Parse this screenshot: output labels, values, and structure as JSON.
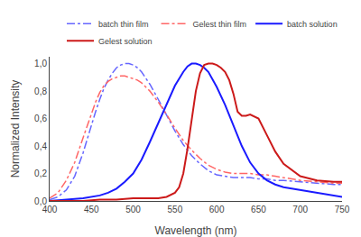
{
  "chart_data": {
    "type": "line",
    "xlabel": "Wavelength (nm)",
    "ylabel": "Normalized Intensity",
    "xlim": [
      400,
      750
    ],
    "ylim": [
      0.0,
      1.05
    ],
    "xticks": [
      400,
      450,
      500,
      550,
      600,
      650,
      700,
      750
    ],
    "yticks": [
      {
        "value": 0.0,
        "label": "0,0"
      },
      {
        "value": 0.2,
        "label": "0,2"
      },
      {
        "value": 0.4,
        "label": "0,4"
      },
      {
        "value": 0.6,
        "label": "0,6"
      },
      {
        "value": 0.8,
        "label": "0,8"
      },
      {
        "value": 1.0,
        "label": "1,0"
      }
    ],
    "grid": false,
    "legend": "upper right",
    "series": [
      {
        "name": "batch thin film",
        "color": "#6666ff",
        "line_style": "dashdot",
        "x": [
          400,
          410,
          420,
          430,
          440,
          450,
          455,
          460,
          465,
          470,
          475,
          480,
          485,
          490,
          495,
          500,
          505,
          510,
          520,
          530,
          540,
          550,
          560,
          570,
          580,
          590,
          600,
          610,
          620,
          630,
          640,
          650,
          660,
          670,
          680,
          700,
          720,
          740,
          750
        ],
        "values": [
          0.01,
          0.03,
          0.08,
          0.18,
          0.35,
          0.56,
          0.65,
          0.74,
          0.82,
          0.88,
          0.93,
          0.97,
          0.99,
          1.0,
          1.0,
          0.99,
          0.97,
          0.94,
          0.85,
          0.74,
          0.62,
          0.51,
          0.41,
          0.33,
          0.27,
          0.22,
          0.19,
          0.18,
          0.17,
          0.17,
          0.17,
          0.16,
          0.16,
          0.15,
          0.15,
          0.14,
          0.13,
          0.12,
          0.12
        ]
      },
      {
        "name": "Gelest thin film",
        "color": "#ff6666",
        "line_style": "dashdot",
        "x": [
          400,
          410,
          420,
          430,
          440,
          445,
          450,
          455,
          460,
          465,
          470,
          475,
          480,
          485,
          490,
          495,
          500,
          505,
          510,
          520,
          530,
          540,
          550,
          560,
          570,
          580,
          590,
          600,
          610,
          620,
          630,
          640,
          650,
          660,
          670,
          680,
          700,
          720,
          740,
          750
        ],
        "values": [
          0.02,
          0.06,
          0.15,
          0.28,
          0.46,
          0.55,
          0.64,
          0.72,
          0.79,
          0.84,
          0.87,
          0.89,
          0.9,
          0.91,
          0.91,
          0.9,
          0.89,
          0.88,
          0.86,
          0.8,
          0.72,
          0.63,
          0.53,
          0.44,
          0.37,
          0.31,
          0.26,
          0.23,
          0.21,
          0.2,
          0.2,
          0.2,
          0.19,
          0.19,
          0.18,
          0.17,
          0.15,
          0.14,
          0.13,
          0.13
        ]
      },
      {
        "name": "batch solution",
        "color": "#1a1aff",
        "line_style": "solid",
        "x": [
          400,
          420,
          440,
          460,
          470,
          480,
          490,
          500,
          510,
          520,
          530,
          540,
          550,
          560,
          565,
          570,
          575,
          580,
          585,
          590,
          600,
          610,
          620,
          630,
          640,
          650,
          660,
          670,
          680,
          690,
          700,
          710,
          720,
          730,
          740,
          750
        ],
        "values": [
          0.0,
          0.01,
          0.02,
          0.04,
          0.06,
          0.09,
          0.14,
          0.2,
          0.3,
          0.43,
          0.57,
          0.71,
          0.84,
          0.94,
          0.98,
          1.0,
          1.0,
          0.99,
          0.97,
          0.94,
          0.83,
          0.7,
          0.55,
          0.4,
          0.28,
          0.2,
          0.15,
          0.12,
          0.1,
          0.09,
          0.08,
          0.07,
          0.06,
          0.05,
          0.04,
          0.03
        ]
      },
      {
        "name": "Gelest solution",
        "color": "#cc1a1a",
        "line_style": "solid",
        "x": [
          400,
          440,
          460,
          480,
          500,
          510,
          520,
          530,
          540,
          550,
          555,
          560,
          565,
          570,
          575,
          580,
          585,
          590,
          595,
          600,
          605,
          610,
          615,
          620,
          625,
          630,
          635,
          640,
          650,
          660,
          670,
          680,
          700,
          720,
          740,
          750
        ],
        "values": [
          0.0,
          0.0,
          0.01,
          0.01,
          0.02,
          0.02,
          0.02,
          0.02,
          0.03,
          0.06,
          0.1,
          0.2,
          0.38,
          0.6,
          0.8,
          0.93,
          0.99,
          1.0,
          1.0,
          0.99,
          0.97,
          0.94,
          0.88,
          0.78,
          0.65,
          0.62,
          0.62,
          0.63,
          0.6,
          0.48,
          0.36,
          0.27,
          0.18,
          0.15,
          0.14,
          0.14
        ]
      }
    ]
  }
}
